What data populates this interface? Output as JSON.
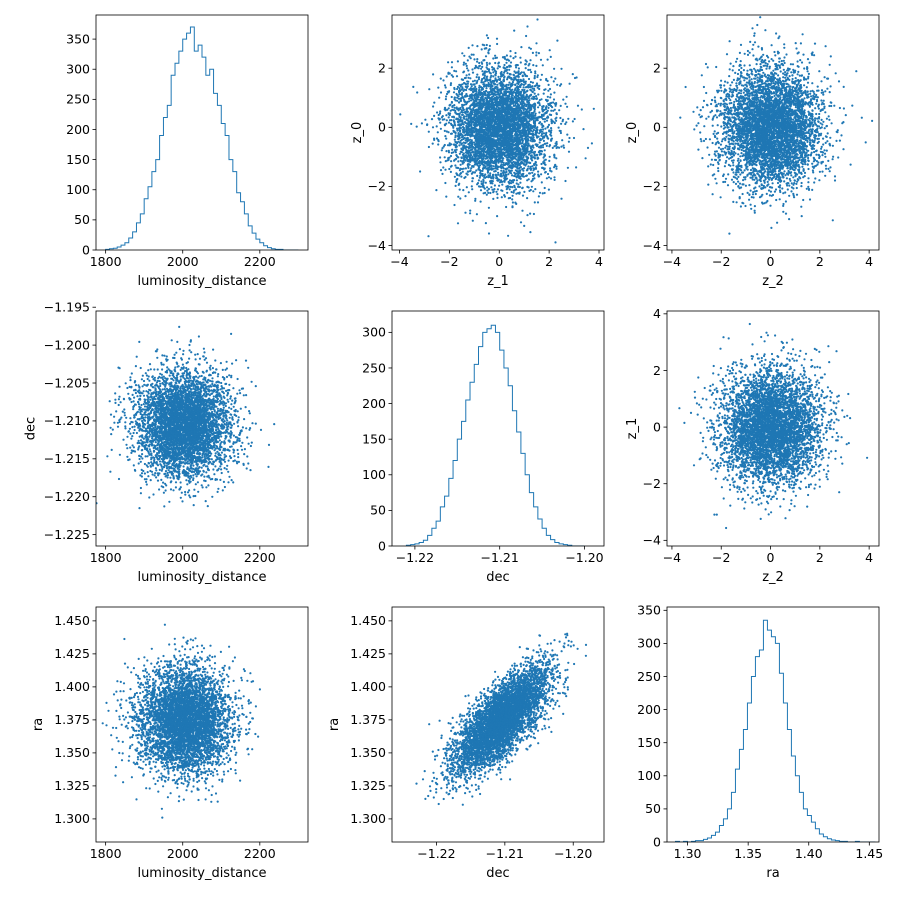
{
  "figure": {
    "color": "#1f77b4",
    "background": "#ffffff"
  },
  "chart_data": [
    {
      "id": "hist-luminosity-distance",
      "type": "histogram",
      "xlabel": "luminosity_distance",
      "ylabel": "",
      "xlim": [
        1775,
        2325
      ],
      "ylim": [
        0,
        390
      ],
      "xticks": [
        1800,
        2000,
        2200
      ],
      "yticks": [
        0,
        50,
        100,
        150,
        200,
        250,
        300,
        350
      ],
      "xtick_labels": [
        "1800",
        "2000",
        "2200"
      ],
      "ytick_labels": [
        "0",
        "50",
        "100",
        "150",
        "200",
        "250",
        "300",
        "350"
      ],
      "bin_start": 1800,
      "bin_width": 10,
      "counts": [
        1,
        2,
        3,
        5,
        8,
        12,
        20,
        30,
        45,
        60,
        85,
        105,
        130,
        150,
        190,
        220,
        240,
        290,
        310,
        330,
        350,
        360,
        370,
        330,
        340,
        320,
        290,
        300,
        260,
        240,
        210,
        190,
        150,
        130,
        95,
        80,
        60,
        40,
        28,
        18,
        12,
        7,
        4,
        2,
        1,
        1,
        0,
        0,
        0,
        0
      ]
    },
    {
      "id": "scatter-z1-z0",
      "type": "scatter",
      "xlabel": "z_1",
      "ylabel": "z_0",
      "xlim": [
        -4.3,
        4.2
      ],
      "ylim": [
        -4.15,
        3.8
      ],
      "xticks": [
        -4,
        -2,
        0,
        2,
        4
      ],
      "yticks": [
        -4,
        -2,
        0,
        2
      ],
      "xtick_labels": [
        "−4",
        "−2",
        "0",
        "2",
        "4"
      ],
      "ytick_labels": [
        "−4",
        "−2",
        "0",
        "2"
      ],
      "samples": {
        "n": 5000,
        "mean_x": 0,
        "mean_y": 0,
        "sd_x": 1,
        "sd_y": 1,
        "corr": 0
      }
    },
    {
      "id": "scatter-z2-z0",
      "type": "scatter",
      "xlabel": "z_2",
      "ylabel": "z_0",
      "xlim": [
        -4.2,
        4.4
      ],
      "ylim": [
        -4.15,
        3.8
      ],
      "xticks": [
        -4,
        -2,
        0,
        2,
        4
      ],
      "yticks": [
        -4,
        -2,
        0,
        2
      ],
      "xtick_labels": [
        "−4",
        "−2",
        "0",
        "2",
        "4"
      ],
      "ytick_labels": [
        "−4",
        "−2",
        "0",
        "2"
      ],
      "samples": {
        "n": 5000,
        "mean_x": 0,
        "mean_y": 0,
        "sd_x": 1,
        "sd_y": 1,
        "corr": 0
      }
    },
    {
      "id": "scatter-ld-dec",
      "type": "scatter",
      "xlabel": "luminosity_distance",
      "ylabel": "dec",
      "xlim": [
        1775,
        2325
      ],
      "ylim": [
        -1.2265,
        -1.1955
      ],
      "xticks": [
        1800,
        2000,
        2200
      ],
      "yticks": [
        -1.225,
        -1.22,
        -1.215,
        -1.21,
        -1.205,
        -1.2,
        -1.195
      ],
      "xtick_labels": [
        "1800",
        "2000",
        "2200"
      ],
      "ytick_labels": [
        "−1.225",
        "−1.220",
        "−1.215",
        "−1.210",
        "−1.205",
        "−1.200",
        "−1.195"
      ],
      "samples": {
        "n": 5000,
        "mean_x": 2005,
        "mean_y": -1.2105,
        "sd_x": 60,
        "sd_y": 0.0035,
        "corr": 0
      }
    },
    {
      "id": "hist-dec",
      "type": "histogram",
      "xlabel": "dec",
      "ylabel": "",
      "xlim": [
        -1.2227,
        -1.1977
      ],
      "ylim": [
        0,
        330
      ],
      "xticks": [
        -1.22,
        -1.21,
        -1.2
      ],
      "yticks": [
        0,
        50,
        100,
        150,
        200,
        250,
        300
      ],
      "xtick_labels": [
        "−1.22",
        "−1.21",
        "−1.20"
      ],
      "ytick_labels": [
        "0",
        "50",
        "100",
        "150",
        "200",
        "250",
        "300"
      ],
      "bin_start": -1.221,
      "bin_width": 0.0005,
      "counts": [
        1,
        2,
        3,
        5,
        8,
        15,
        25,
        35,
        55,
        70,
        95,
        120,
        150,
        175,
        205,
        230,
        255,
        280,
        300,
        305,
        310,
        300,
        275,
        250,
        225,
        190,
        160,
        130,
        100,
        75,
        55,
        38,
        25,
        15,
        9,
        5,
        3,
        2,
        1,
        0,
        0,
        0
      ]
    },
    {
      "id": "scatter-z2-z1",
      "type": "scatter",
      "xlabel": "z_2",
      "ylabel": "z_1",
      "xlim": [
        -4.2,
        4.4
      ],
      "ylim": [
        -4.2,
        4.1
      ],
      "xticks": [
        -4,
        -2,
        0,
        2,
        4
      ],
      "yticks": [
        -4,
        -2,
        0,
        2,
        4
      ],
      "xtick_labels": [
        "−4",
        "−2",
        "0",
        "2",
        "4"
      ],
      "ytick_labels": [
        "−4",
        "−2",
        "0",
        "2",
        "4"
      ],
      "samples": {
        "n": 5000,
        "mean_x": 0,
        "mean_y": 0,
        "sd_x": 1,
        "sd_y": 1,
        "corr": 0
      }
    },
    {
      "id": "scatter-ld-ra",
      "type": "scatter",
      "xlabel": "luminosity_distance",
      "ylabel": "ra",
      "xlim": [
        1775,
        2325
      ],
      "ylim": [
        1.2825,
        1.4605
      ],
      "xticks": [
        1800,
        2000,
        2200
      ],
      "yticks": [
        1.3,
        1.325,
        1.35,
        1.375,
        1.4,
        1.425,
        1.45
      ],
      "xtick_labels": [
        "1800",
        "2000",
        "2200"
      ],
      "ytick_labels": [
        "1.300",
        "1.325",
        "1.350",
        "1.375",
        "1.400",
        "1.425",
        "1.450"
      ],
      "samples": {
        "n": 5000,
        "mean_x": 2005,
        "mean_y": 1.375,
        "sd_x": 60,
        "sd_y": 0.02,
        "corr": 0
      }
    },
    {
      "id": "scatter-dec-ra",
      "type": "scatter",
      "xlabel": "dec",
      "ylabel": "ra",
      "xlim": [
        -1.2265,
        -1.1955
      ],
      "ylim": [
        1.2825,
        1.4605
      ],
      "xticks": [
        -1.22,
        -1.21,
        -1.2
      ],
      "yticks": [
        1.3,
        1.325,
        1.35,
        1.375,
        1.4,
        1.425,
        1.45
      ],
      "xtick_labels": [
        "−1.22",
        "−1.21",
        "−1.20"
      ],
      "ytick_labels": [
        "1.300",
        "1.325",
        "1.350",
        "1.375",
        "1.400",
        "1.425",
        "1.450"
      ],
      "samples": {
        "n": 5000,
        "mean_x": -1.2105,
        "mean_y": 1.375,
        "sd_x": 0.0035,
        "sd_y": 0.02,
        "corr": 0.75
      }
    },
    {
      "id": "hist-ra",
      "type": "histogram",
      "xlabel": "ra",
      "ylabel": "",
      "xlim": [
        1.283,
        1.458
      ],
      "ylim": [
        0,
        355
      ],
      "xticks": [
        1.3,
        1.35,
        1.4,
        1.45
      ],
      "yticks": [
        0,
        50,
        100,
        150,
        200,
        250,
        300,
        350
      ],
      "xtick_labels": [
        "1.30",
        "1.35",
        "1.40",
        "1.45"
      ],
      "ytick_labels": [
        "0",
        "50",
        "100",
        "150",
        "200",
        "250",
        "300",
        "350"
      ],
      "bin_start": 1.29,
      "bin_width": 0.0033,
      "counts": [
        1,
        0,
        1,
        0,
        1,
        2,
        2,
        4,
        6,
        10,
        15,
        25,
        35,
        50,
        75,
        110,
        140,
        170,
        210,
        250,
        280,
        290,
        335,
        320,
        310,
        300,
        255,
        210,
        170,
        130,
        100,
        75,
        50,
        40,
        30,
        20,
        12,
        8,
        5,
        3,
        2,
        1,
        1,
        0,
        0,
        1,
        0,
        0,
        0,
        0
      ]
    }
  ]
}
